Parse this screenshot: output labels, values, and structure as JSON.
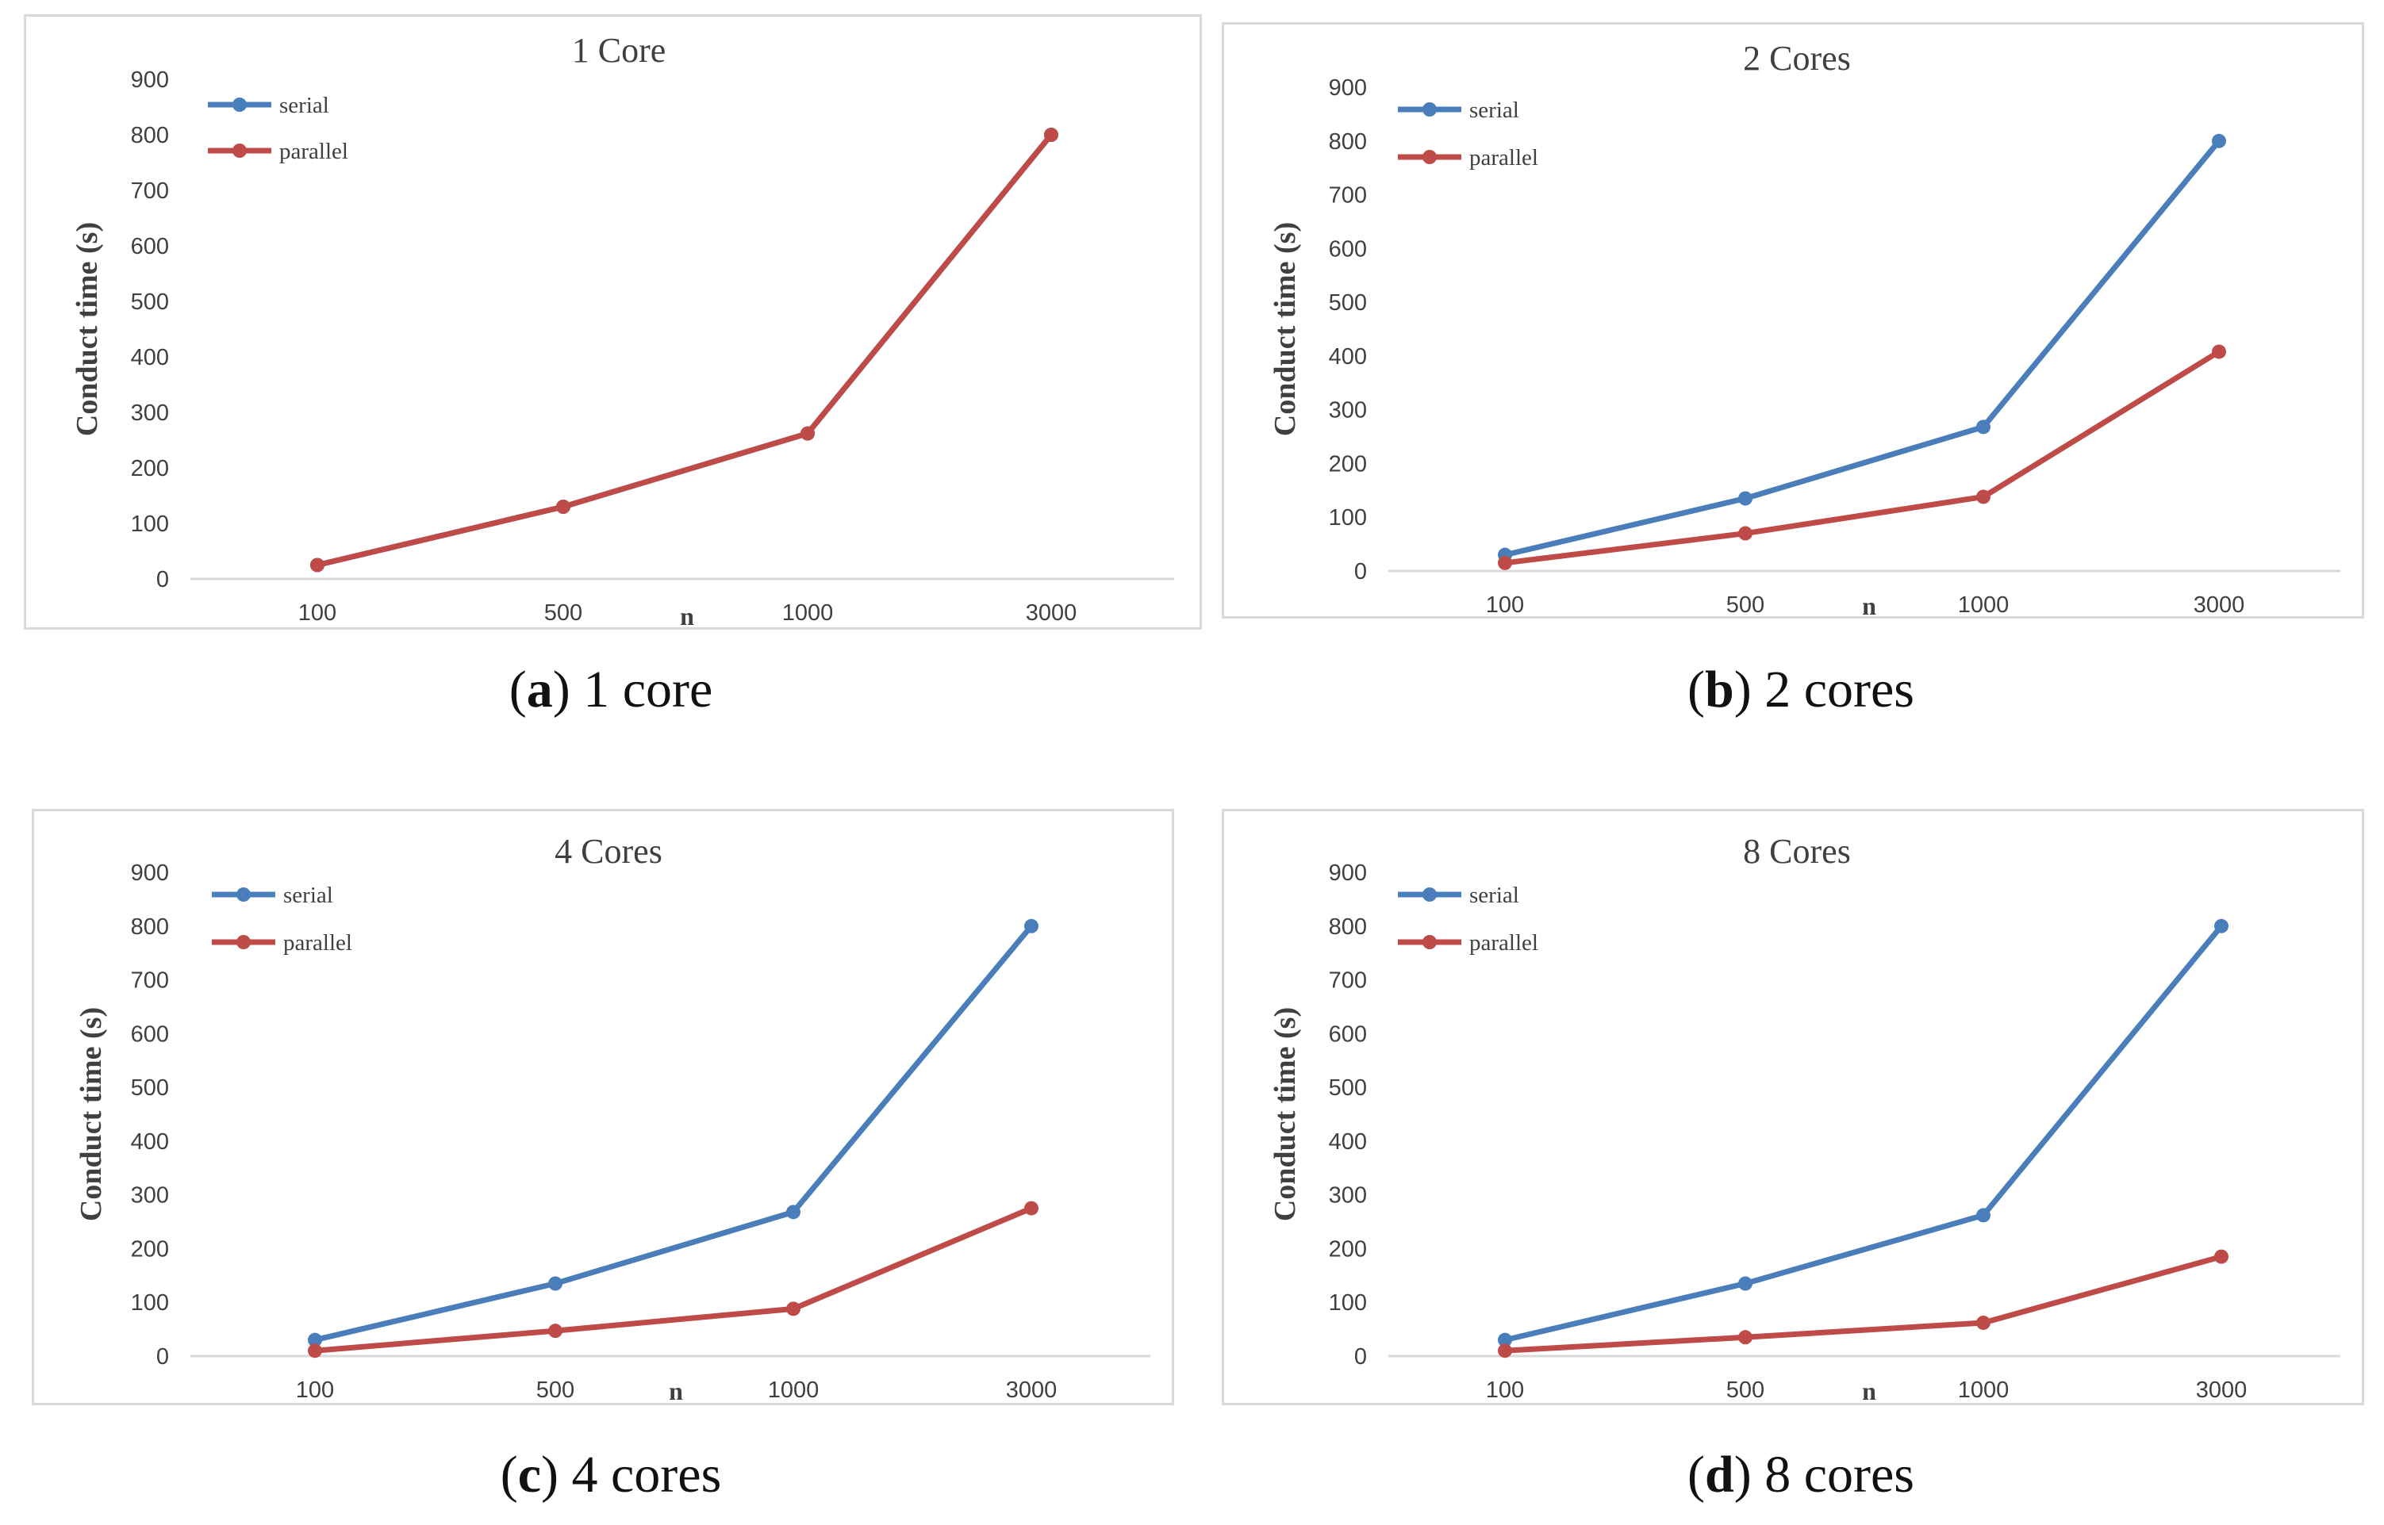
{
  "colors": {
    "serial": "#4a7ebb",
    "parallel": "#be4b48",
    "axis": "#d9d9d9",
    "text": "#404040"
  },
  "chart_data": [
    {
      "type": "line",
      "title": "1 Core",
      "caption_letter": "(a)",
      "caption_text": "1 core",
      "xlabel": "n",
      "ylabel": "Conduct time (s)",
      "categories": [
        "100",
        "500",
        "1000",
        "3000"
      ],
      "ylim": [
        0,
        900
      ],
      "yticks": [
        "0",
        "100",
        "200",
        "300",
        "400",
        "500",
        "600",
        "700",
        "800",
        "900"
      ],
      "legend_position": "top-left",
      "series": [
        {
          "name": "serial",
          "color": "#4a7ebb",
          "values": [
            25,
            130,
            262,
            800
          ]
        },
        {
          "name": "parallel",
          "color": "#be4b48",
          "values": [
            25,
            130,
            262,
            800
          ]
        }
      ]
    },
    {
      "type": "line",
      "title": "2 Cores",
      "caption_letter": "(b)",
      "caption_text": "2 cores",
      "xlabel": "n",
      "ylabel": "Conduct time (s)",
      "categories": [
        "100",
        "500",
        "1000",
        "3000"
      ],
      "ylim": [
        0,
        900
      ],
      "yticks": [
        "0",
        "100",
        "200",
        "300",
        "400",
        "500",
        "600",
        "700",
        "800",
        "900"
      ],
      "legend_position": "top-left",
      "series": [
        {
          "name": "serial",
          "color": "#4a7ebb",
          "values": [
            30,
            135,
            268,
            800
          ]
        },
        {
          "name": "parallel",
          "color": "#be4b48",
          "values": [
            15,
            70,
            138,
            408
          ]
        }
      ]
    },
    {
      "type": "line",
      "title": "4 Cores",
      "caption_letter": "(c)",
      "caption_text": "4 cores",
      "xlabel": "n",
      "ylabel": "Conduct time (s)",
      "categories": [
        "100",
        "500",
        "1000",
        "3000"
      ],
      "ylim": [
        0,
        900
      ],
      "yticks": [
        "0",
        "100",
        "200",
        "300",
        "400",
        "500",
        "600",
        "700",
        "800",
        "900"
      ],
      "legend_position": "top-left",
      "series": [
        {
          "name": "serial",
          "color": "#4a7ebb",
          "values": [
            30,
            135,
            268,
            800
          ]
        },
        {
          "name": "parallel",
          "color": "#be4b48",
          "values": [
            10,
            47,
            88,
            275
          ]
        }
      ]
    },
    {
      "type": "line",
      "title": "8 Cores",
      "caption_letter": "(d)",
      "caption_text": "8 cores",
      "xlabel": "n",
      "ylabel": "Conduct time (s)",
      "categories": [
        "100",
        "500",
        "1000",
        "3000"
      ],
      "ylim": [
        0,
        900
      ],
      "yticks": [
        "0",
        "100",
        "200",
        "300",
        "400",
        "500",
        "600",
        "700",
        "800",
        "900"
      ],
      "legend_position": "top-left",
      "series": [
        {
          "name": "serial",
          "color": "#4a7ebb",
          "values": [
            30,
            135,
            262,
            800
          ]
        },
        {
          "name": "parallel",
          "color": "#be4b48",
          "values": [
            10,
            35,
            62,
            185
          ]
        }
      ]
    }
  ]
}
